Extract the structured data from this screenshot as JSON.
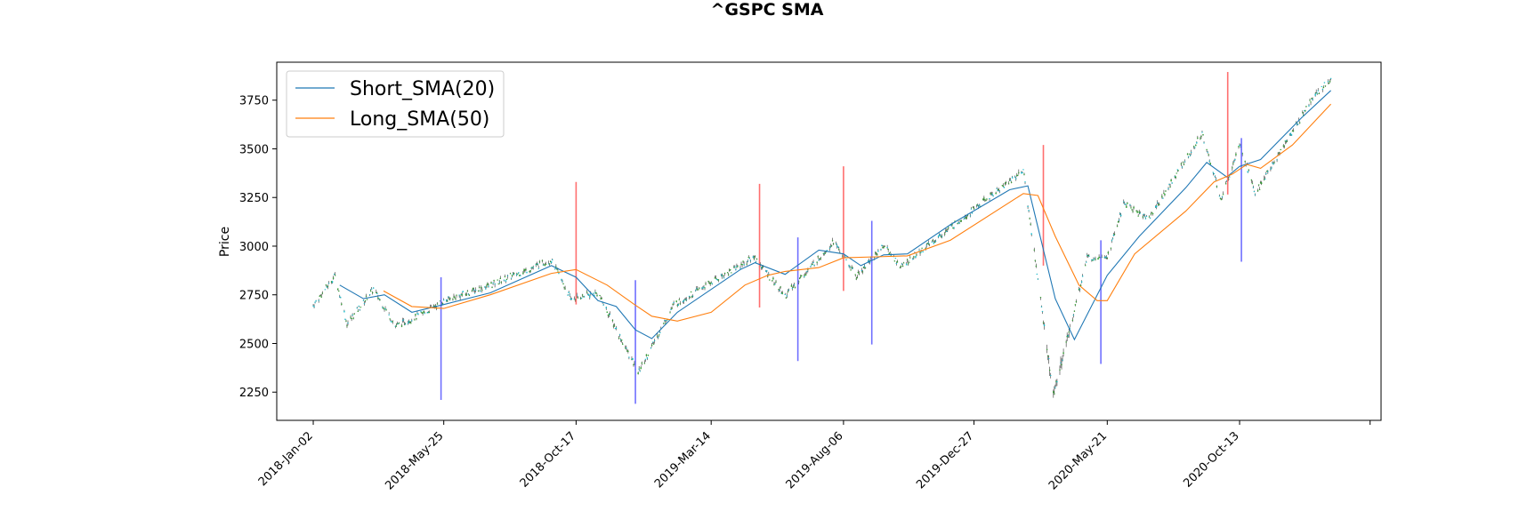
{
  "chart_data": {
    "type": "line",
    "title": "^GSPC SMA",
    "xlabel": "",
    "ylabel": "Price",
    "ylim": [
      2105,
      3945
    ],
    "yticks": [
      2250,
      2500,
      2750,
      3000,
      3250,
      3500,
      3750
    ],
    "xticks": [
      "2018-Jan-02",
      "2018-May-25",
      "2018-Oct-17",
      "2019-Mar-14",
      "2019-Aug-06",
      "2019-Dec-27",
      "2020-May-21",
      "2020-Oct-13"
    ],
    "x_range_days": [
      -40,
      1170
    ],
    "grid": false,
    "legend_position": "top-left",
    "colors": {
      "short": "#1f77b4",
      "long": "#ff7f0e",
      "buy_signal": "#ff6f6f",
      "sell_signal": "#7070ff",
      "candle_up": "#2ca02c",
      "candle_down": "#17becf"
    },
    "price_path": [
      [
        "2018-Jan-02",
        2695
      ],
      [
        "2018-Jan-26",
        2850
      ],
      [
        "2018-Feb-08",
        2600
      ],
      [
        "2018-Mar-09",
        2780
      ],
      [
        "2018-Apr-02",
        2590
      ],
      [
        "2018-May-01",
        2650
      ],
      [
        "2018-May-25",
        2720
      ],
      [
        "2018-Jul-15",
        2800
      ],
      [
        "2018-Sep-20",
        2930
      ],
      [
        "2018-Oct-11",
        2730
      ],
      [
        "2018-Nov-10",
        2760
      ],
      [
        "2018-Dec-24",
        2350
      ],
      [
        "2019-Feb-01",
        2700
      ],
      [
        "2019-Apr-30",
        2945
      ],
      [
        "2019-Jun-03",
        2745
      ],
      [
        "2019-Jul-26",
        3025
      ],
      [
        "2019-Aug-20",
        2845
      ],
      [
        "2019-Sep-19",
        3005
      ],
      [
        "2019-Oct-08",
        2895
      ],
      [
        "2020-Feb-19",
        3390
      ],
      [
        "2020-Mar-23",
        2235
      ],
      [
        "2020-Apr-29",
        2940
      ],
      [
        "2020-May-22",
        2955
      ],
      [
        "2020-Jun-08",
        3220
      ],
      [
        "2020-Jul-05",
        3140
      ],
      [
        "2020-Sep-02",
        3580
      ],
      [
        "2020-Sep-23",
        3235
      ],
      [
        "2020-Oct-13",
        3535
      ],
      [
        "2020-Oct-30",
        3270
      ],
      [
        "2020-Dec-31",
        3755
      ],
      [
        "2021-Jan-21",
        3860
      ]
    ],
    "series": [
      {
        "name": "Short_SMA(20)",
        "points": [
          [
            "2018-Jan-31",
            2800
          ],
          [
            "2018-Feb-26",
            2730
          ],
          [
            "2018-Mar-21",
            2750
          ],
          [
            "2018-Apr-20",
            2660
          ],
          [
            "2018-May-25",
            2700
          ],
          [
            "2018-Jul-15",
            2760
          ],
          [
            "2018-Sep-20",
            2900
          ],
          [
            "2018-Oct-17",
            2840
          ],
          [
            "2018-Nov-10",
            2720
          ],
          [
            "2018-Nov-30",
            2690
          ],
          [
            "2018-Dec-21",
            2570
          ],
          [
            "2019-Jan-08",
            2525
          ],
          [
            "2019-Feb-05",
            2660
          ],
          [
            "2019-Apr-15",
            2880
          ],
          [
            "2019-May-01",
            2915
          ],
          [
            "2019-Jun-03",
            2855
          ],
          [
            "2019-Jul-10",
            2980
          ],
          [
            "2019-Aug-06",
            2960
          ],
          [
            "2019-Aug-25",
            2900
          ],
          [
            "2019-Sep-19",
            2955
          ],
          [
            "2019-Oct-15",
            2960
          ],
          [
            "2019-Dec-01",
            3110
          ],
          [
            "2020-Feb-04",
            3290
          ],
          [
            "2020-Feb-24",
            3310
          ],
          [
            "2020-Mar-25",
            2730
          ],
          [
            "2020-Apr-15",
            2520
          ],
          [
            "2020-May-21",
            2850
          ],
          [
            "2020-Jun-25",
            3050
          ],
          [
            "2020-Aug-15",
            3300
          ],
          [
            "2020-Sep-07",
            3430
          ],
          [
            "2020-Sep-29",
            3355
          ],
          [
            "2020-Oct-13",
            3410
          ],
          [
            "2020-Nov-05",
            3445
          ],
          [
            "2020-Dec-20",
            3660
          ],
          [
            "2021-Jan-21",
            3800
          ]
        ]
      },
      {
        "name": "Long_SMA(50)",
        "points": [
          [
            "2018-Mar-20",
            2770
          ],
          [
            "2018-Apr-20",
            2690
          ],
          [
            "2018-May-25",
            2680
          ],
          [
            "2018-Jul-15",
            2750
          ],
          [
            "2018-Sep-20",
            2860
          ],
          [
            "2018-Oct-17",
            2880
          ],
          [
            "2018-Nov-20",
            2800
          ],
          [
            "2018-Dec-20",
            2700
          ],
          [
            "2019-Jan-08",
            2640
          ],
          [
            "2019-Feb-05",
            2615
          ],
          [
            "2019-Mar-14",
            2660
          ],
          [
            "2019-Apr-20",
            2800
          ],
          [
            "2019-May-15",
            2850
          ],
          [
            "2019-Jun-03",
            2870
          ],
          [
            "2019-Jul-10",
            2890
          ],
          [
            "2019-Aug-06",
            2940
          ],
          [
            "2019-Sep-10",
            2945
          ],
          [
            "2019-Oct-15",
            2950
          ],
          [
            "2019-Dec-01",
            3030
          ],
          [
            "2020-Feb-19",
            3270
          ],
          [
            "2020-Mar-06",
            3260
          ],
          [
            "2020-Mar-25",
            3050
          ],
          [
            "2020-Apr-20",
            2800
          ],
          [
            "2020-May-10",
            2720
          ],
          [
            "2020-May-21",
            2720
          ],
          [
            "2020-Jun-20",
            2960
          ],
          [
            "2020-Aug-15",
            3180
          ],
          [
            "2020-Sep-15",
            3330
          ],
          [
            "2020-Oct-05",
            3370
          ],
          [
            "2020-Oct-21",
            3420
          ],
          [
            "2020-Nov-05",
            3400
          ],
          [
            "2020-Dec-10",
            3520
          ],
          [
            "2021-Jan-21",
            3730
          ]
        ]
      }
    ],
    "buy_signals": [
      {
        "date": "2018-Oct-17",
        "low": 2700,
        "high": 3330
      },
      {
        "date": "2019-May-06",
        "low": 2685,
        "high": 3320
      },
      {
        "date": "2019-Aug-06",
        "low": 2770,
        "high": 3410
      },
      {
        "date": "2020-Mar-12",
        "low": 2900,
        "high": 3520
      },
      {
        "date": "2020-Sep-30",
        "low": 3265,
        "high": 3895
      }
    ],
    "sell_signals": [
      {
        "date": "2018-May-22",
        "low": 2210,
        "high": 2840
      },
      {
        "date": "2018-Dec-21",
        "low": 2190,
        "high": 2825
      },
      {
        "date": "2019-Jun-17",
        "low": 2410,
        "high": 3045
      },
      {
        "date": "2019-Sep-06",
        "low": 2495,
        "high": 3130
      },
      {
        "date": "2020-May-14",
        "low": 2395,
        "high": 3030
      },
      {
        "date": "2020-Oct-15",
        "low": 2920,
        "high": 3555
      }
    ]
  }
}
